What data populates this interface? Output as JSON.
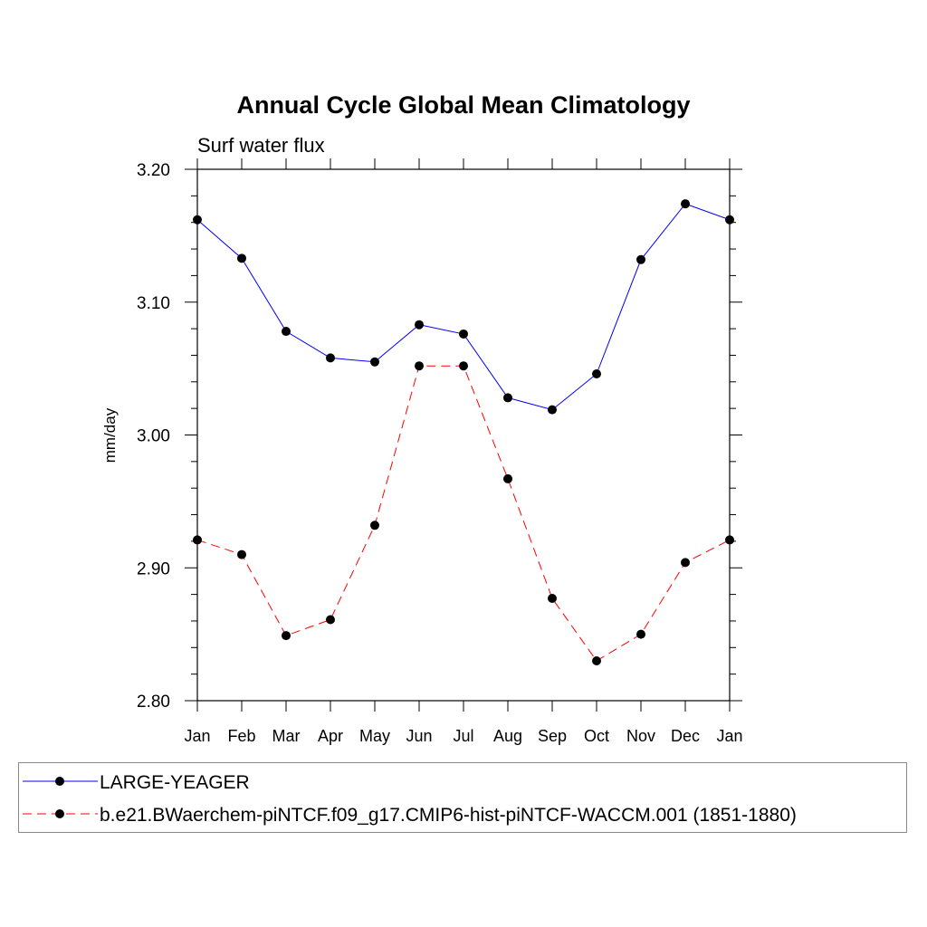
{
  "chart_data": {
    "type": "line",
    "title": "Annual Cycle Global Mean Climatology",
    "subtitle": "Surf water flux",
    "xlabel": "",
    "ylabel": "mm/day",
    "categories": [
      "Jan",
      "Feb",
      "Mar",
      "Apr",
      "May",
      "Jun",
      "Jul",
      "Aug",
      "Sep",
      "Oct",
      "Nov",
      "Dec",
      "Jan"
    ],
    "ylim": [
      2.8,
      3.2
    ],
    "y_ticks": [
      "2.80",
      "2.90",
      "3.00",
      "3.10",
      "3.20"
    ],
    "series": [
      {
        "name": "LARGE-YEAGER",
        "color": "#0000ff",
        "style": "solid",
        "values": [
          3.162,
          3.133,
          3.078,
          3.058,
          3.055,
          3.083,
          3.076,
          3.028,
          3.019,
          3.046,
          3.132,
          3.174,
          3.162
        ]
      },
      {
        "name": "b.e21.BWaerchem-piNTCF.f09_g17.CMIP6-hist-piNTCF-WACCM.001 (1851-1880)",
        "color": "#ff0000",
        "style": "dashed",
        "values": [
          2.921,
          2.91,
          2.849,
          2.861,
          2.932,
          3.052,
          3.052,
          2.967,
          2.877,
          2.83,
          2.85,
          2.904,
          2.921
        ]
      }
    ]
  }
}
